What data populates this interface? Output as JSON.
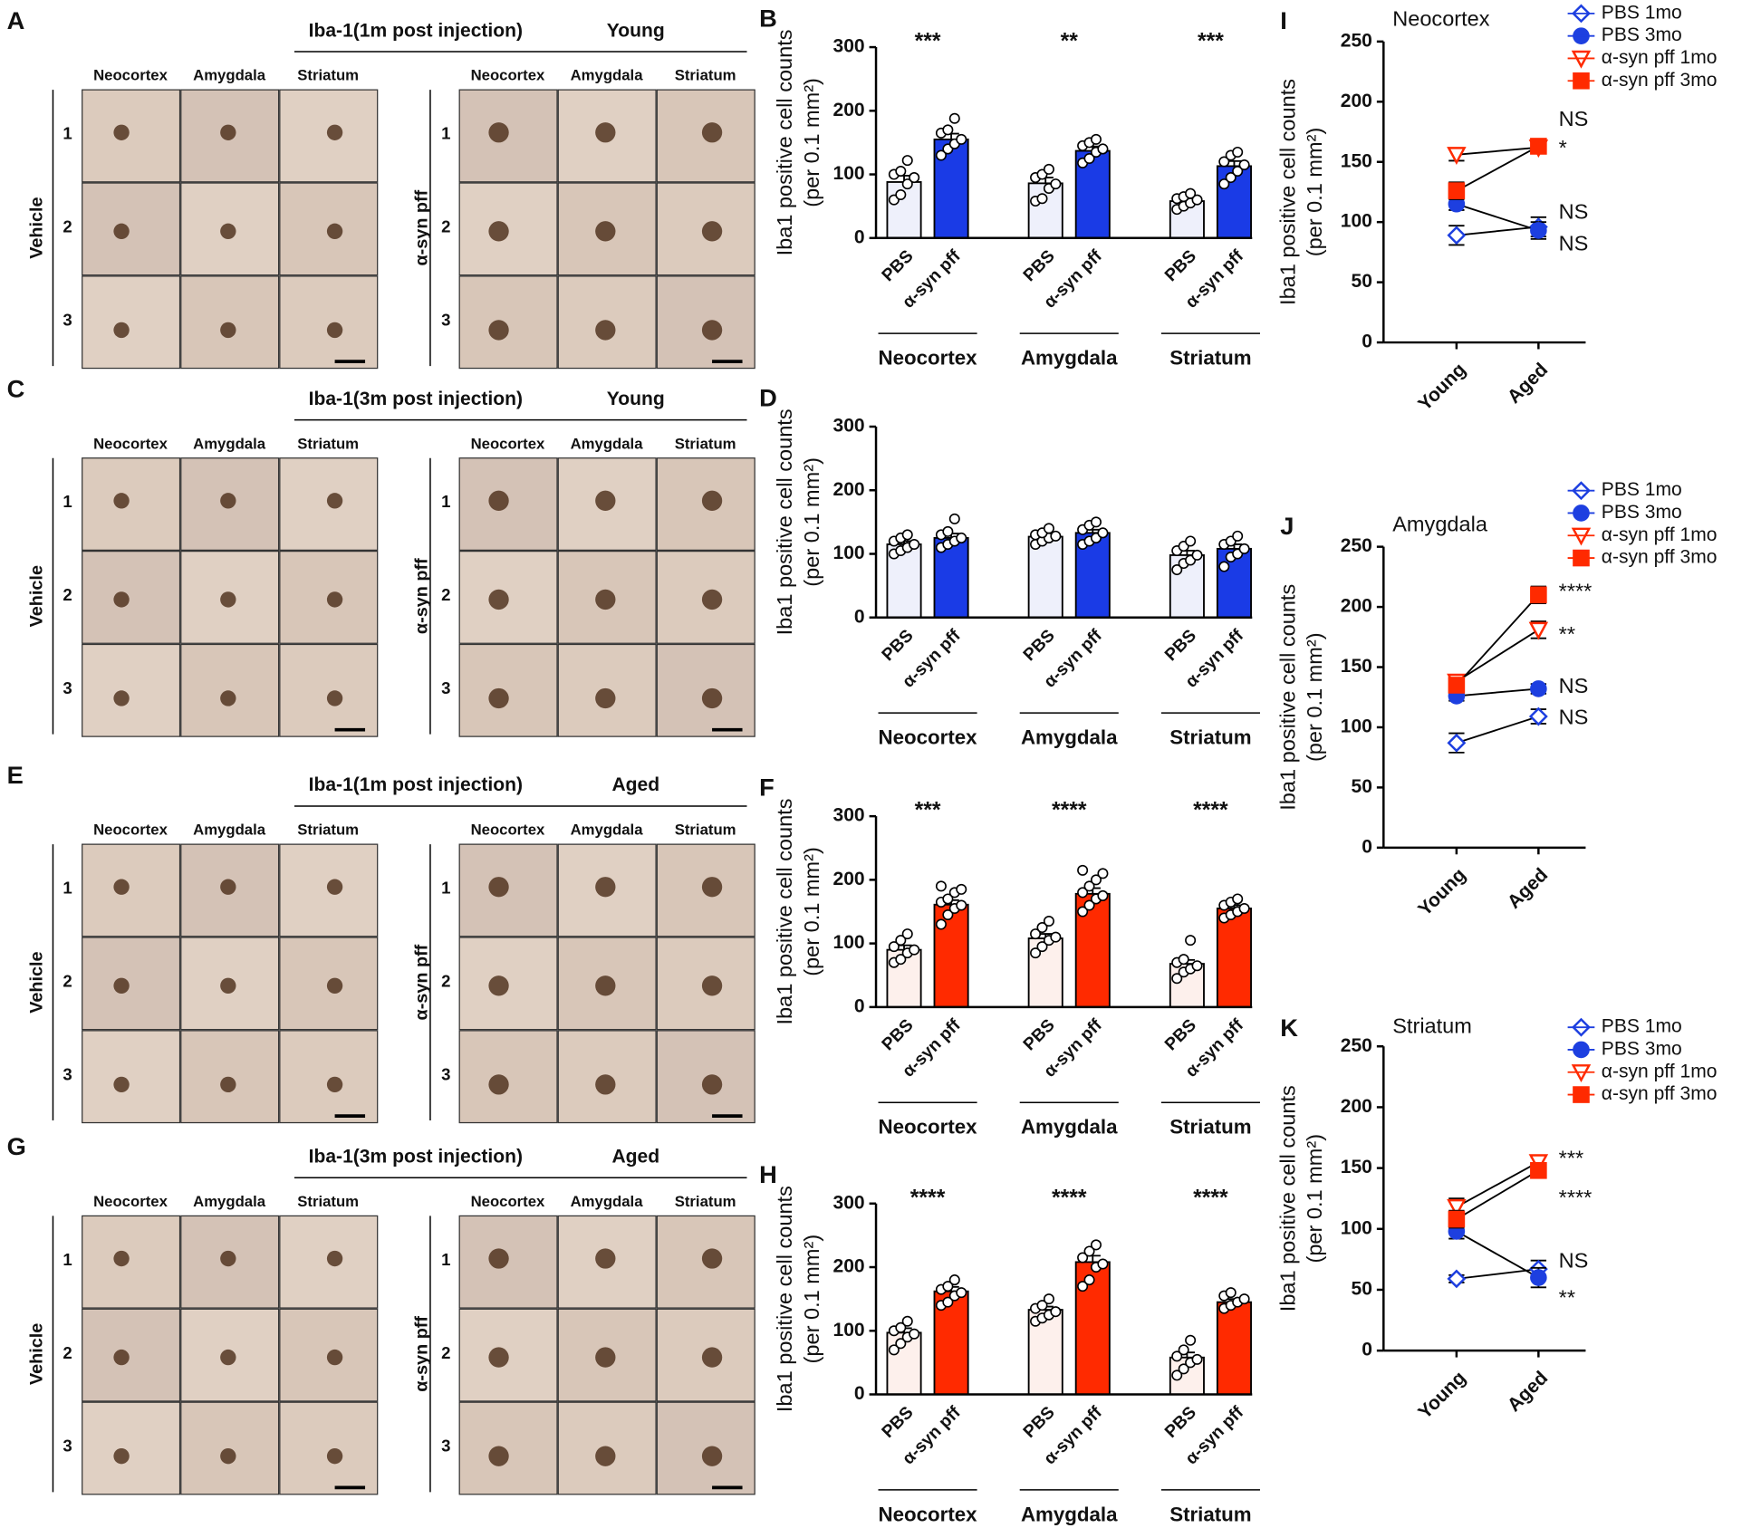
{
  "image_panels": [
    {
      "label": "A",
      "title": "Iba-1(1m post injection)",
      "group": "Young",
      "columns": [
        "Neocortex",
        "Amygdala",
        "Striatum"
      ],
      "rows": [
        "1",
        "2",
        "3"
      ],
      "conditions": [
        "Vehicle",
        "α-syn pff"
      ]
    },
    {
      "label": "C",
      "title": "Iba-1(3m post injection)",
      "group": "Young",
      "columns": [
        "Neocortex",
        "Amygdala",
        "Striatum"
      ],
      "rows": [
        "1",
        "2",
        "3"
      ],
      "conditions": [
        "Vehicle",
        "α-syn pff"
      ]
    },
    {
      "label": "E",
      "title": "Iba-1(1m post injection)",
      "group": "Aged",
      "columns": [
        "Neocortex",
        "Amygdala",
        "Striatum"
      ],
      "rows": [
        "1",
        "2",
        "3"
      ],
      "conditions": [
        "Vehicle",
        "α-syn pff"
      ]
    },
    {
      "label": "G",
      "title": "Iba-1(3m post injection)",
      "group": "Aged",
      "columns": [
        "Neocortex",
        "Amygdala",
        "Striatum"
      ],
      "rows": [
        "1",
        "2",
        "3"
      ],
      "conditions": [
        "Vehicle",
        "α-syn pff"
      ]
    }
  ],
  "chart_data": [
    {
      "type": "bar",
      "label": "B",
      "ylabel": "Iba1 positive cell counts",
      "ylabel2": "(per 0.1 mm²)",
      "categories": [
        "Neocortex",
        "Amygdala",
        "Striatum"
      ],
      "significance": [
        "***",
        "**",
        "***"
      ],
      "ylim": [
        0,
        300
      ],
      "yticks": [
        0,
        100,
        200,
        300
      ],
      "series": [
        {
          "name": "PBS",
          "color": "#eef0fb",
          "values": [
            88,
            86,
            58
          ],
          "errors": [
            10,
            9,
            4
          ],
          "points": [
            [
              60,
              68,
              85,
              95,
              100,
              105,
              122
            ],
            [
              58,
              62,
              78,
              85,
              95,
              100,
              108
            ],
            [
              45,
              50,
              55,
              60,
              62,
              65,
              70
            ]
          ]
        },
        {
          "name": "α-syn pff",
          "color": "#1a3be6",
          "values": [
            155,
            137,
            113
          ],
          "errors": [
            9,
            7,
            8
          ],
          "points": [
            [
              130,
              140,
              148,
              155,
              165,
              170,
              188
            ],
            [
              118,
              125,
              135,
              140,
              145,
              150,
              155
            ],
            [
              85,
              95,
              105,
              115,
              120,
              130,
              135
            ]
          ]
        }
      ]
    },
    {
      "type": "bar",
      "label": "D",
      "ylabel": "Iba1 positive cell counts",
      "ylabel2": "(per 0.1 mm²)",
      "categories": [
        "Neocortex",
        "Amygdala",
        "Striatum"
      ],
      "significance": [],
      "ylim": [
        0,
        300
      ],
      "yticks": [
        0,
        100,
        200,
        300
      ],
      "series": [
        {
          "name": "PBS",
          "color": "#eef0fb",
          "values": [
            115,
            127,
            98
          ],
          "errors": [
            5,
            4,
            7
          ],
          "points": [
            [
              100,
              105,
              110,
              115,
              120,
              125,
              130
            ],
            [
              115,
              120,
              125,
              128,
              130,
              133,
              140
            ],
            [
              75,
              85,
              90,
              98,
              105,
              112,
              120
            ]
          ]
        },
        {
          "name": "α-syn pff",
          "color": "#1a3be6",
          "values": [
            125,
            133,
            108
          ],
          "errors": [
            7,
            5,
            7
          ],
          "points": [
            [
              110,
              115,
              120,
              125,
              130,
              135,
              155
            ],
            [
              115,
              120,
              125,
              133,
              138,
              145,
              150
            ],
            [
              80,
              95,
              100,
              108,
              115,
              120,
              128
            ]
          ]
        }
      ]
    },
    {
      "type": "bar",
      "label": "F",
      "ylabel": "Iba1 positive cell counts",
      "ylabel2": "(per 0.1 mm²)",
      "categories": [
        "Neocortex",
        "Amygdala",
        "Striatum"
      ],
      "significance": [
        "***",
        "****",
        "****"
      ],
      "ylim": [
        0,
        300
      ],
      "yticks": [
        0,
        100,
        200,
        300
      ],
      "series": [
        {
          "name": "PBS",
          "color": "#fdf0ec",
          "values": [
            90,
            108,
            68
          ],
          "errors": [
            7,
            7,
            6
          ],
          "points": [
            [
              70,
              75,
              85,
              90,
              95,
              105,
              115
            ],
            [
              85,
              95,
              105,
              110,
              115,
              125,
              135
            ],
            [
              45,
              55,
              60,
              65,
              70,
              75,
              105
            ]
          ]
        },
        {
          "name": "α-syn pff",
          "color": "#ff2a00",
          "values": [
            161,
            178,
            155
          ],
          "errors": [
            7,
            9,
            5
          ],
          "points": [
            [
              130,
              145,
              155,
              160,
              165,
              170,
              180,
              185,
              190
            ],
            [
              150,
              160,
              170,
              175,
              180,
              190,
              200,
              210,
              215
            ],
            [
              140,
              145,
              150,
              155,
              160,
              165,
              170
            ]
          ]
        }
      ]
    },
    {
      "type": "bar",
      "label": "H",
      "ylabel": "Iba1 positive cell counts",
      "ylabel2": "(per 0.1 mm²)",
      "categories": [
        "Neocortex",
        "Amygdala",
        "Striatum"
      ],
      "significance": [
        "****",
        "****",
        "****"
      ],
      "ylim": [
        0,
        300
      ],
      "yticks": [
        0,
        100,
        200,
        300
      ],
      "series": [
        {
          "name": "PBS",
          "color": "#fdf0ec",
          "values": [
            97,
            133,
            58
          ],
          "errors": [
            7,
            5,
            8
          ],
          "points": [
            [
              70,
              80,
              90,
              95,
              100,
              105,
              115
            ],
            [
              115,
              120,
              125,
              130,
              135,
              140,
              150
            ],
            [
              30,
              40,
              50,
              55,
              60,
              70,
              85
            ]
          ]
        },
        {
          "name": "α-syn pff",
          "color": "#ff2a00",
          "values": [
            162,
            208,
            145
          ],
          "errors": [
            7,
            10,
            5
          ],
          "points": [
            [
              140,
              145,
              155,
              160,
              165,
              170,
              180
            ],
            [
              170,
              180,
              200,
              205,
              215,
              225,
              235
            ],
            [
              135,
              140,
              145,
              150,
              155,
              160
            ]
          ]
        }
      ]
    },
    {
      "type": "line",
      "label": "I",
      "title": "Neocortex",
      "ylabel": "Iba1 positive cell counts",
      "ylabel2": "(per 0.1 mm²)",
      "categories": [
        "Young",
        "Aged"
      ],
      "ylim": [
        0,
        250
      ],
      "yticks": [
        0,
        50,
        100,
        150,
        200,
        250
      ],
      "annotations": [
        "NS",
        "*",
        "NS",
        "NS"
      ],
      "series": [
        {
          "name": "PBS 1mo",
          "color": "#1d3fe0",
          "marker": "diamond-open",
          "values": [
            89,
            96
          ],
          "errors": [
            8,
            8
          ]
        },
        {
          "name": "PBS 3mo",
          "color": "#1d3fe0",
          "marker": "circle",
          "values": [
            115,
            93
          ],
          "errors": [
            5,
            7
          ]
        },
        {
          "name": "α-syn pff 1mo",
          "color": "#ff2a00",
          "marker": "triangle-open",
          "values": [
            156,
            162
          ],
          "errors": [
            5,
            5
          ]
        },
        {
          "name": "α-syn pff 3mo",
          "color": "#ff2a00",
          "marker": "square",
          "values": [
            126,
            163
          ],
          "errors": [
            7,
            5
          ]
        }
      ]
    },
    {
      "type": "line",
      "label": "J",
      "title": "Amygdala",
      "ylabel": "Iba1 positive cell counts",
      "ylabel2": "(per 0.1 mm²)",
      "categories": [
        "Young",
        "Aged"
      ],
      "ylim": [
        0,
        250
      ],
      "yticks": [
        0,
        50,
        100,
        150,
        200,
        250
      ],
      "annotations": [
        "****",
        "**",
        "NS",
        "NS"
      ],
      "series": [
        {
          "name": "PBS 1mo",
          "color": "#1d3fe0",
          "marker": "diamond-open",
          "values": [
            87,
            109
          ],
          "errors": [
            8,
            6
          ]
        },
        {
          "name": "PBS 3mo",
          "color": "#1d3fe0",
          "marker": "circle",
          "values": [
            126,
            132
          ],
          "errors": [
            4,
            4
          ]
        },
        {
          "name": "α-syn pff 1mo",
          "color": "#ff2a00",
          "marker": "triangle-open",
          "values": [
            138,
            181
          ],
          "errors": [
            4,
            7
          ]
        },
        {
          "name": "α-syn pff 3mo",
          "color": "#ff2a00",
          "marker": "square",
          "values": [
            135,
            210
          ],
          "errors": [
            4,
            7
          ]
        }
      ]
    },
    {
      "type": "line",
      "label": "K",
      "title": "Striatum",
      "ylabel": "Iba1 positive cell counts",
      "ylabel2": "(per 0.1 mm²)",
      "categories": [
        "Young",
        "Aged"
      ],
      "ylim": [
        0,
        250
      ],
      "yticks": [
        0,
        50,
        100,
        150,
        200,
        250
      ],
      "annotations": [
        "***",
        "****",
        "NS",
        "**"
      ],
      "series": [
        {
          "name": "PBS 1mo",
          "color": "#1d3fe0",
          "marker": "diamond-open",
          "values": [
            59,
            67
          ],
          "errors": [
            3,
            7
          ]
        },
        {
          "name": "PBS 3mo",
          "color": "#1d3fe0",
          "marker": "circle",
          "values": [
            98,
            60
          ],
          "errors": [
            6,
            8
          ]
        },
        {
          "name": "α-syn pff 1mo",
          "color": "#ff2a00",
          "marker": "triangle-open",
          "values": [
            118,
            155
          ],
          "errors": [
            7,
            4
          ]
        },
        {
          "name": "α-syn pff 3mo",
          "color": "#ff2a00",
          "marker": "square",
          "values": [
            108,
            148
          ],
          "errors": [
            7,
            5
          ]
        }
      ]
    }
  ]
}
